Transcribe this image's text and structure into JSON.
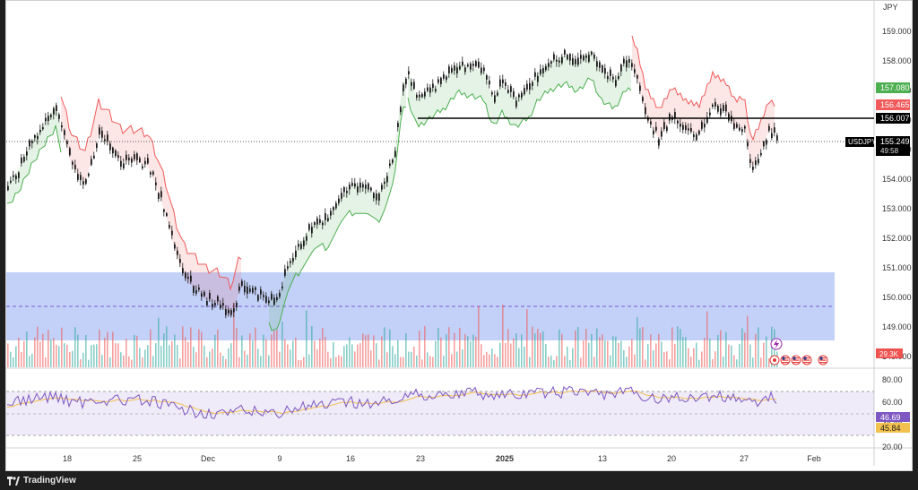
{
  "currency": "JPY",
  "symbol_tag": "USDJPY",
  "price_labels": {
    "high": "157.080",
    "low": "156.465",
    "hline": "156.007",
    "last": "155.249",
    "countdown": "49:58",
    "volume": "29.3K",
    "rsi": "46.69",
    "rsi_ma": "45.84"
  },
  "price_axis": [
    "159.000",
    "158.000",
    "157.000",
    "156.000",
    "155.000",
    "154.000",
    "153.000",
    "152.000",
    "151.000",
    "150.000",
    "149.000",
    "148.000"
  ],
  "rsi_axis": [
    "80.00",
    "60.00",
    "40.00",
    "20.00"
  ],
  "time_axis": [
    "18",
    "25",
    "Dec",
    "9",
    "16",
    "23",
    "2025",
    "13",
    "20",
    "27",
    "Feb"
  ],
  "time_axis_bold": [
    "2025"
  ],
  "branding": "TradingView",
  "colors": {
    "up": "#26a69a",
    "down": "#ef5350",
    "candle": "#1a1a1a",
    "st_up": "#4caf50",
    "st_down": "#f05a5a",
    "zone": "#7b99f0",
    "rsi": "#7e57c2",
    "rsi_ma": "#f2c14e",
    "hline": "#000000"
  },
  "icons": [
    "lightning-icon",
    "record-icon",
    "usa-flag-icon",
    "usa-flag-icon",
    "usa-flag-icon",
    "usa-flag-icon",
    "usa-flag-icon"
  ]
}
